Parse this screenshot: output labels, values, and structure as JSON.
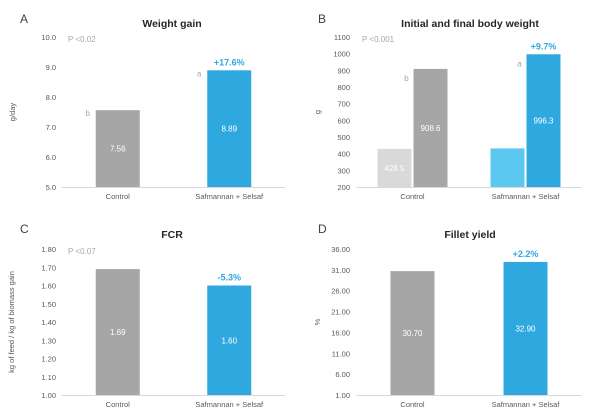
{
  "colors": {
    "control": "#a6a6a6",
    "treatment": "#2fa8df",
    "control_initial": "#d9d9d9",
    "treatment_initial": "#5bc8f0",
    "axis": "#d9d9d9",
    "tick_text": "#595959",
    "p_text": "#a6a6a6",
    "pct_text": "#2fa8df",
    "bar_label": "#ffffff",
    "title_text": "#262626"
  },
  "chart_data": [
    {
      "panel": "A",
      "type": "bar",
      "title": "Weight gain",
      "ylabel": "g/day",
      "xlabel": "",
      "p_value": "P <0.02",
      "ylim": [
        5.0,
        10.0
      ],
      "yticks": [
        "5.0",
        "6.0",
        "7.0",
        "8.0",
        "9.0",
        "10.0"
      ],
      "categories": [
        "Control",
        "Safmannan + Selsaf"
      ],
      "series": [
        {
          "name": "Weight gain",
          "values": [
            7.56,
            8.89
          ],
          "labels": [
            "7.56",
            "8.89"
          ]
        }
      ],
      "letters": [
        "b",
        "a"
      ],
      "change": "+17.6%"
    },
    {
      "panel": "B",
      "type": "bar",
      "title": "Initial and final body weight",
      "ylabel": "g",
      "xlabel": "",
      "p_value": "P <0.001",
      "ylim": [
        200,
        1100
      ],
      "yticks": [
        "200",
        "300",
        "400",
        "500",
        "600",
        "700",
        "800",
        "900",
        "1000",
        "1100"
      ],
      "categories": [
        "Control",
        "Safmannan + Selsaf"
      ],
      "series": [
        {
          "name": "Initial",
          "values": [
            428.5,
            431.7
          ],
          "labels": [
            "428.5",
            ""
          ]
        },
        {
          "name": "Final",
          "values": [
            908.6,
            996.3
          ],
          "labels": [
            "908.6",
            "996.3"
          ]
        }
      ],
      "letters": [
        "b",
        "a"
      ],
      "change": "+9.7%"
    },
    {
      "panel": "C",
      "type": "bar",
      "title": "FCR",
      "ylabel": "kg of feed / kg of biomass gain",
      "xlabel": "",
      "p_value": "P <0.07",
      "ylim": [
        1.0,
        1.8
      ],
      "yticks": [
        "1.00",
        "1.10",
        "1.20",
        "1.30",
        "1.40",
        "1.50",
        "1.60",
        "1.70",
        "1.80"
      ],
      "categories": [
        "Control",
        "Safmannan + Selsaf"
      ],
      "series": [
        {
          "name": "FCR",
          "values": [
            1.69,
            1.6
          ],
          "labels": [
            "1.69",
            "1.60"
          ]
        }
      ],
      "letters": [
        "",
        ""
      ],
      "change": "-5.3%"
    },
    {
      "panel": "D",
      "type": "bar",
      "title": "Fillet yield",
      "ylabel": "%",
      "xlabel": "",
      "p_value": "",
      "ylim": [
        1.0,
        36.0
      ],
      "yticks": [
        "1.00",
        "6.00",
        "11.00",
        "16.00",
        "21.00",
        "26.00",
        "31.00",
        "36.00"
      ],
      "categories": [
        "Control",
        "Safmannan + Selsaf"
      ],
      "series": [
        {
          "name": "Fillet yield",
          "values": [
            30.7,
            32.9
          ],
          "labels": [
            "30.70",
            "32.90"
          ]
        }
      ],
      "letters": [
        "",
        ""
      ],
      "change": "+2.2%"
    }
  ]
}
